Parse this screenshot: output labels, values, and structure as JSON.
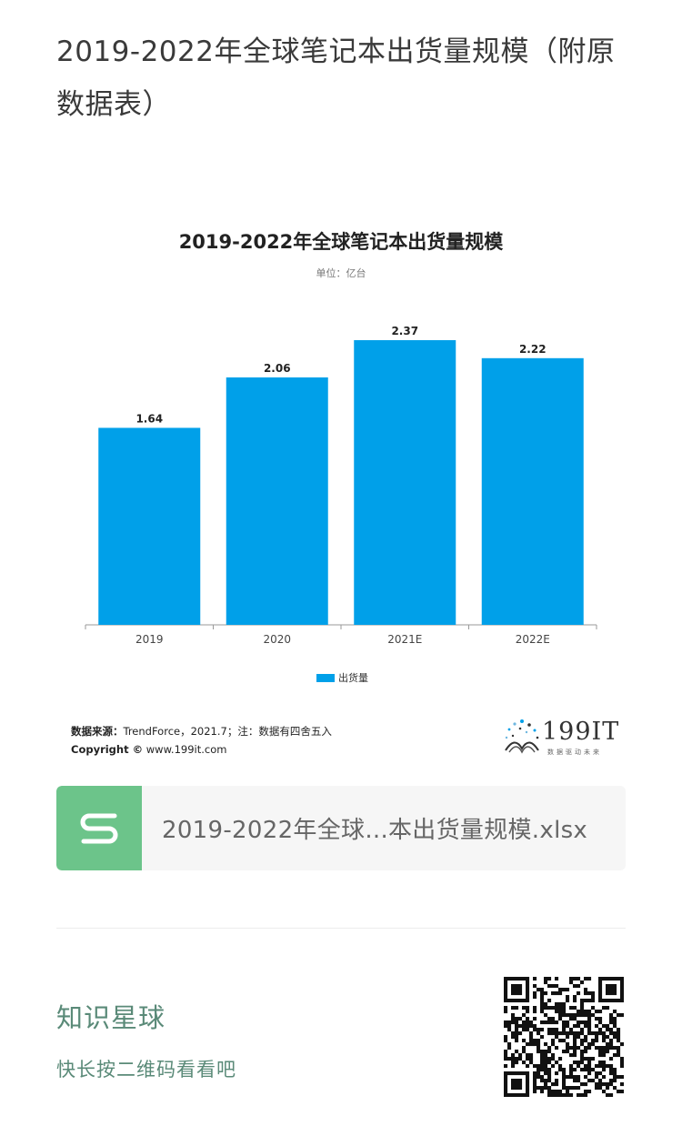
{
  "post": {
    "title": "2019-2022年全球笔记本出货量规模（附原数据表）"
  },
  "chart_data": {
    "type": "bar",
    "title": "2019-2022年全球笔记本出货量规模",
    "subtitle": "单位：亿台",
    "categories": [
      "2019",
      "2020",
      "2021E",
      "2022E"
    ],
    "series": [
      {
        "name": "出货量",
        "values": [
          1.64,
          2.06,
          2.37,
          2.22
        ]
      }
    ],
    "value_labels": [
      "1.64",
      "2.06",
      "2.37",
      "2.22"
    ],
    "ylim": [
      0,
      2.37
    ],
    "grid": false,
    "legend_position": "bottom",
    "bar_color": "#00a0e9",
    "source_label": "数据来源：",
    "source_text": "TrendForce，2021.7；注：数据有四舍五入",
    "copyright_label": "Copyright ©",
    "copyright_text": "www.199it.com"
  },
  "logo": {
    "text": "199IT",
    "tagline": "数据驱动未来"
  },
  "attachment": {
    "file_name": "2019-2022年全球...本出货量规模.xlsx",
    "icon": "spreadsheet-s-icon",
    "icon_color": "#6cc48a"
  },
  "promo": {
    "name": "知识星球",
    "hint": "快长按二维码看看吧",
    "color": "#5a8a78",
    "qr_icon": "qr-code-icon"
  }
}
